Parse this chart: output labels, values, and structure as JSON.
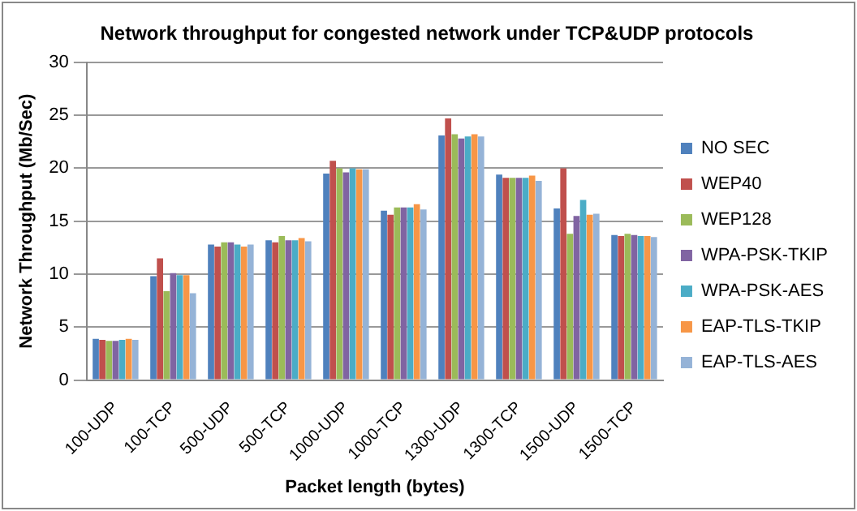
{
  "chart_data": {
    "type": "bar",
    "title": "Network throughput for congested network under TCP&UDP protocols",
    "xlabel": "Packet length (bytes)",
    "ylabel": "Network Throughput (Mb/Sec)",
    "categories": [
      "100-UDP",
      "100-TCP",
      "500-UDP",
      "500-TCP",
      "1000-UDP",
      "1000-TCP",
      "1300-UDP",
      "1300-TCP",
      "1500-UDP",
      "1500-TCP"
    ],
    "series": [
      {
        "name": "NO SEC",
        "color": "#4f81bd",
        "values": [
          3.9,
          9.8,
          12.8,
          13.2,
          19.5,
          16.0,
          23.1,
          19.4,
          16.2,
          13.7
        ]
      },
      {
        "name": "WEP40",
        "color": "#c0504d",
        "values": [
          3.8,
          11.5,
          12.6,
          13.0,
          20.7,
          15.6,
          24.7,
          19.1,
          20.0,
          13.6
        ]
      },
      {
        "name": "WEP128",
        "color": "#9bbb59",
        "values": [
          3.7,
          8.4,
          13.0,
          13.6,
          20.0,
          16.3,
          23.2,
          19.1,
          13.8,
          13.8
        ]
      },
      {
        "name": "WPA-PSK-TKIP",
        "color": "#8064a2",
        "values": [
          3.7,
          10.1,
          13.0,
          13.2,
          19.6,
          16.3,
          22.8,
          19.1,
          15.5,
          13.7
        ]
      },
      {
        "name": "WPA-PSK-AES",
        "color": "#4bacc6",
        "values": [
          3.8,
          9.9,
          12.8,
          13.2,
          20.0,
          16.3,
          23.0,
          19.1,
          17.0,
          13.6
        ]
      },
      {
        "name": "EAP-TLS-TKIP",
        "color": "#f79646",
        "values": [
          3.9,
          9.9,
          12.6,
          13.4,
          19.9,
          16.6,
          23.2,
          19.3,
          15.6,
          13.6
        ]
      },
      {
        "name": "EAP-TLS-AES",
        "color": "#95b3d7",
        "values": [
          3.8,
          8.2,
          12.8,
          13.1,
          19.9,
          16.1,
          23.0,
          18.8,
          15.7,
          13.5
        ]
      }
    ],
    "ylim": [
      0,
      30
    ],
    "yticks": [
      0,
      5,
      10,
      15,
      20,
      25,
      30
    ],
    "grid": "y",
    "legend": "right"
  }
}
